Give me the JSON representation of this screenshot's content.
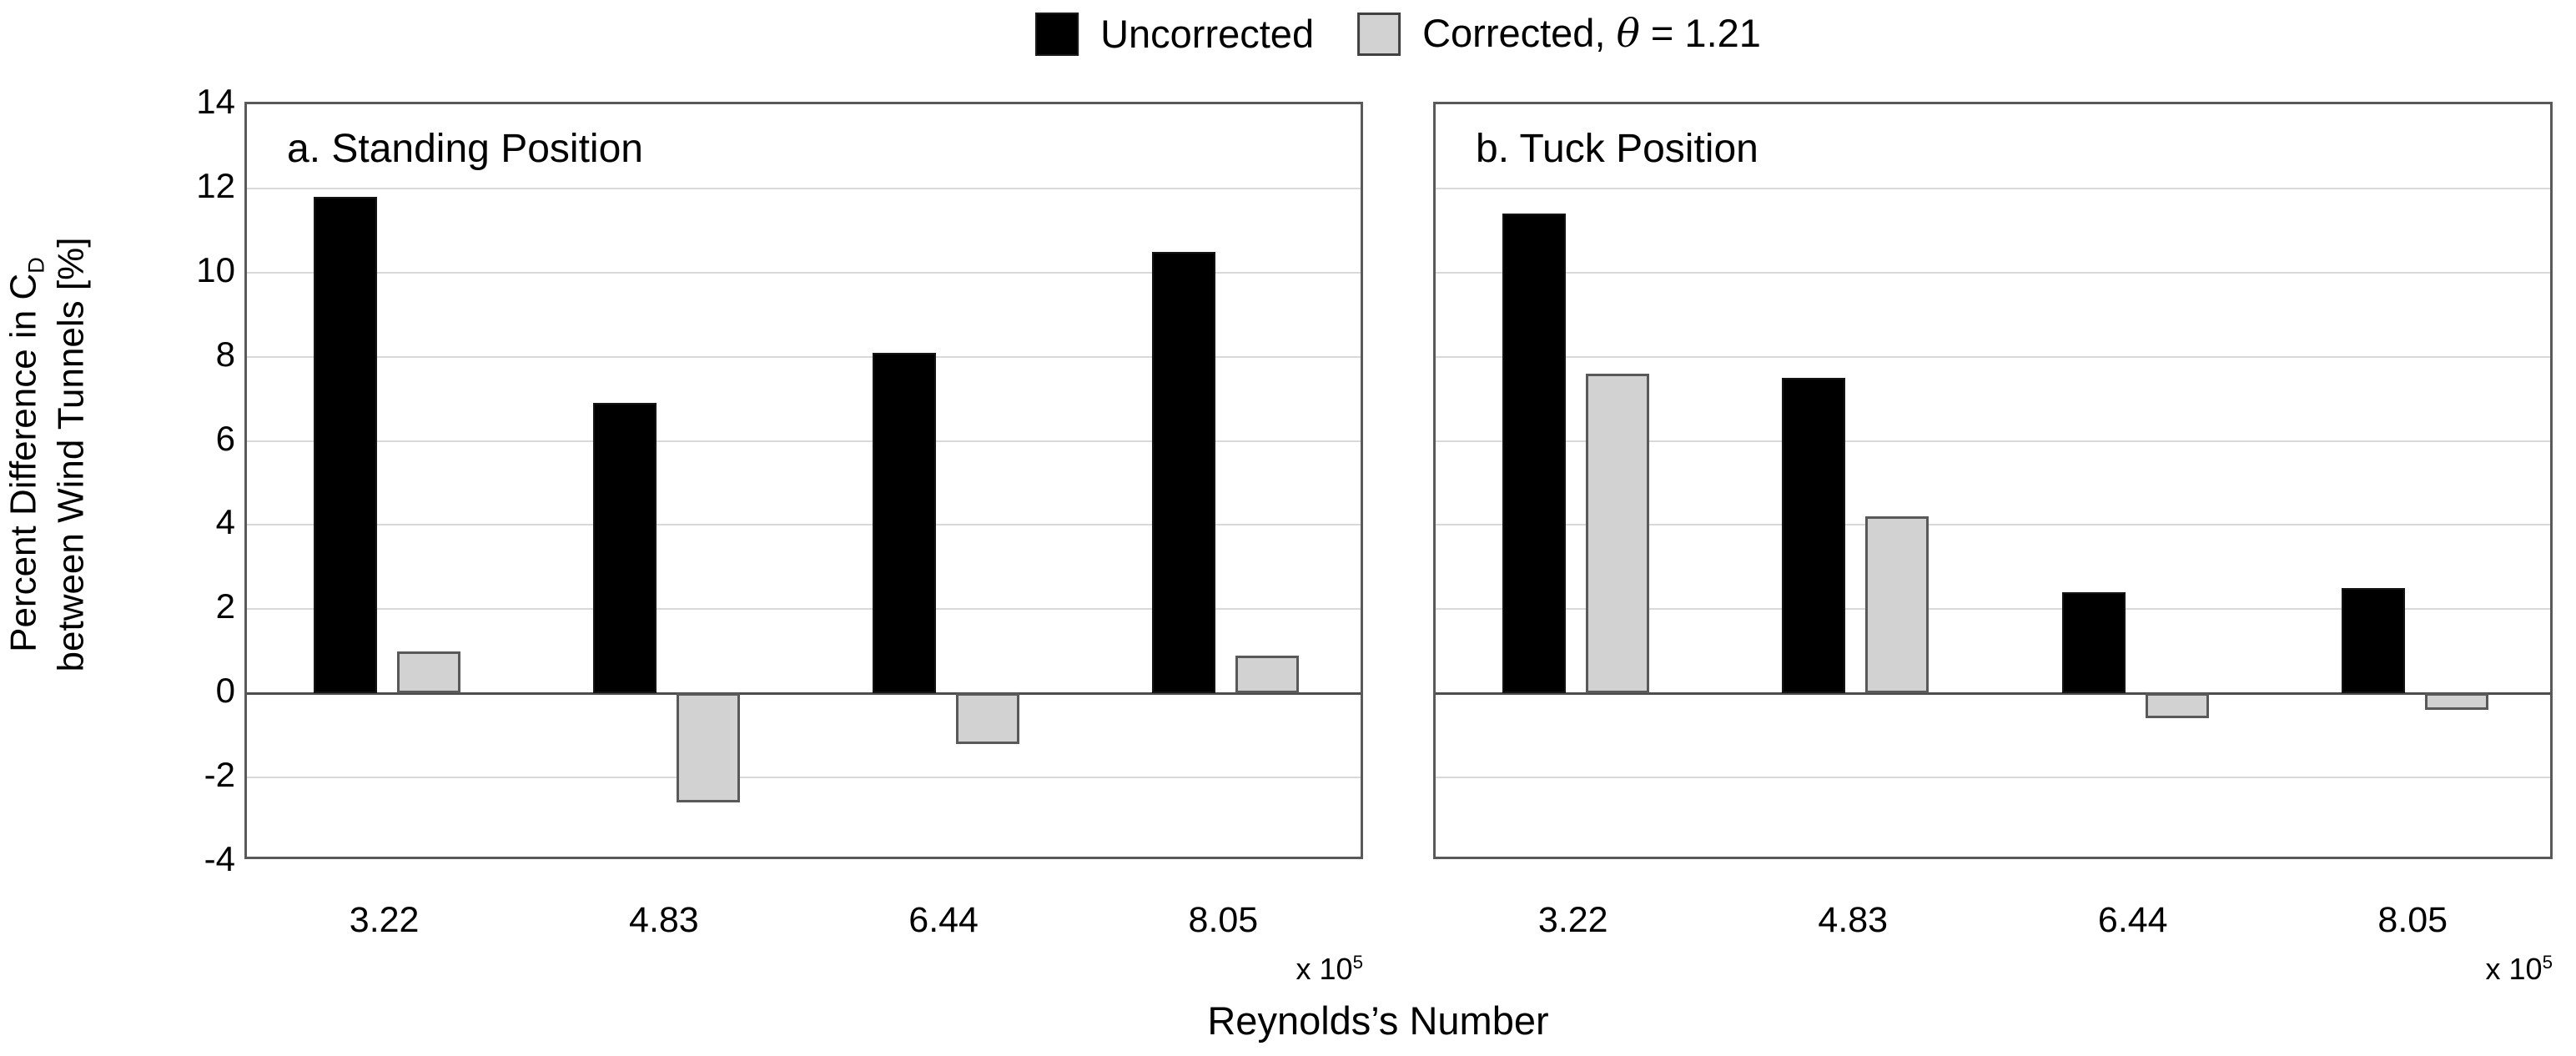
{
  "legend": {
    "uncorrected_label": "Uncorrected",
    "corrected_prefix": "Corrected, ",
    "theta": "θ",
    "corrected_suffix": " = 1.21"
  },
  "y_axis": {
    "line1_prefix": "Percent Difference in C",
    "line1_sub": "D",
    "line2": "between Wind Tunnels [%]",
    "ticks": [
      "14",
      "12",
      "10",
      "8",
      "6",
      "4",
      "2",
      "0",
      "-2",
      "-4"
    ],
    "min": -4,
    "max": 14
  },
  "x_axis": {
    "title": "Reynolds’s Number",
    "multiplier_prefix": "x 10",
    "multiplier_exp": "5"
  },
  "colors": {
    "uncorrected_fill": "#000000",
    "corrected_fill": "#d2d2d2",
    "corrected_border": "#595959",
    "gridline": "#d9d9d9",
    "axis_line": "#595959"
  },
  "chart_data": [
    {
      "type": "bar",
      "title": "a. Standing Position",
      "categories": [
        "3.22",
        "4.83",
        "6.44",
        "8.05"
      ],
      "x_multiplier": "x 10^5",
      "series": [
        {
          "name": "Uncorrected",
          "color": "#000000",
          "values": [
            11.8,
            6.9,
            8.1,
            10.5
          ]
        },
        {
          "name": "Corrected, θ = 1.21",
          "color": "#d2d2d2",
          "values": [
            1.0,
            -2.6,
            -1.2,
            0.9
          ]
        }
      ],
      "xlabel": "Reynolds’s Number",
      "ylabel": "Percent Difference in C_D between Wind Tunnels [%]",
      "ylim": [
        -4,
        14
      ],
      "ytick_step": 2,
      "grid": true,
      "legend_position": "top-center"
    },
    {
      "type": "bar",
      "title": "b. Tuck Position",
      "categories": [
        "3.22",
        "4.83",
        "6.44",
        "8.05"
      ],
      "x_multiplier": "x 10^5",
      "series": [
        {
          "name": "Uncorrected",
          "color": "#000000",
          "values": [
            11.4,
            7.5,
            2.4,
            2.5
          ]
        },
        {
          "name": "Corrected, θ = 1.21",
          "color": "#d2d2d2",
          "values": [
            7.6,
            4.2,
            -0.6,
            -0.4
          ]
        }
      ],
      "xlabel": "Reynolds’s Number",
      "ylabel": "Percent Difference in C_D between Wind Tunnels [%]",
      "ylim": [
        -4,
        14
      ],
      "ytick_step": 2,
      "grid": true,
      "legend_position": "top-center"
    }
  ]
}
